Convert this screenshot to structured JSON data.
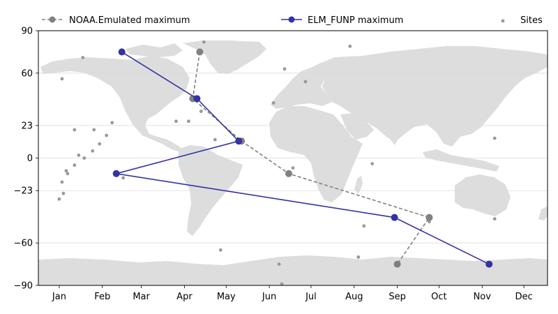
{
  "chart_data": {
    "type": "line",
    "title": "",
    "xlabel": "",
    "ylabel": "",
    "x_axis": {
      "tick_labels": [
        "Jan",
        "Feb",
        "Mar",
        "Apr",
        "May",
        "Jun",
        "Jul",
        "Aug",
        "Sep",
        "Oct",
        "Nov",
        "Dec"
      ],
      "range_days": [
        -15,
        351
      ]
    },
    "y_axis": {
      "ticks": [
        90,
        60,
        23,
        0,
        -23,
        -60,
        -90
      ],
      "tick_labels": [
        "90",
        "60",
        "23",
        "0",
        "−23",
        "−60",
        "−90"
      ],
      "range": [
        -90,
        90
      ]
    },
    "grid": "horizontal",
    "background_map": "world landmass (light gray)",
    "legend": {
      "placement": "top"
    },
    "series": [
      {
        "name": "NOAA.Emulated maximum",
        "color": "#808080",
        "linestyle": "dashed",
        "marker": "circle",
        "points": [
          {
            "date": "Apr 12",
            "lat": 75
          },
          {
            "date": "Apr 7",
            "lat": 42
          },
          {
            "date": "May 12",
            "lat": 12
          },
          {
            "date": "Jun 15",
            "lat": -11
          },
          {
            "date": "Sep 24",
            "lat": -42
          },
          {
            "date": "Sep 1",
            "lat": -75
          }
        ]
      },
      {
        "name": "ELM_FUNP maximum",
        "color": "#3333a4",
        "linestyle": "solid",
        "marker": "circle",
        "points": [
          {
            "date": "Feb 15",
            "lat": 75
          },
          {
            "date": "Apr 10",
            "lat": 42
          },
          {
            "date": "May 10",
            "lat": 12
          },
          {
            "date": "Feb 11",
            "lat": -11
          },
          {
            "date": "Aug 30",
            "lat": -42
          },
          {
            "date": "Nov 6",
            "lat": -75
          }
        ]
      },
      {
        "name": "Sites",
        "color": "#999999",
        "marker": "small-dot",
        "points": [
          {
            "date": "Apr 15",
            "lat": 82
          },
          {
            "date": "Jul 29",
            "lat": 79
          },
          {
            "date": "Jan 18",
            "lat": 71
          },
          {
            "date": "Jun 12",
            "lat": 63
          },
          {
            "date": "Jan 3",
            "lat": 56
          },
          {
            "date": "Jun 27",
            "lat": 54
          },
          {
            "date": "Dec 27",
            "lat": 53
          },
          {
            "date": "Jun 4",
            "lat": 39
          },
          {
            "date": "Apr 13",
            "lat": 33
          },
          {
            "date": "Dec 29",
            "lat": 29
          },
          {
            "date": "Apr 4",
            "lat": 26
          },
          {
            "date": "Mar 26",
            "lat": 26
          },
          {
            "date": "Feb 8",
            "lat": 25
          },
          {
            "date": "Jan 12",
            "lat": 20
          },
          {
            "date": "Jan 26",
            "lat": 20
          },
          {
            "date": "Feb 4",
            "lat": 16
          },
          {
            "date": "Jan 30",
            "lat": 10
          },
          {
            "date": "Apr 23",
            "lat": 13
          },
          {
            "date": "Nov 10",
            "lat": 14
          },
          {
            "date": "Jan 15",
            "lat": 2
          },
          {
            "date": "Jan 25",
            "lat": 5
          },
          {
            "date": "Jan 19",
            "lat": 0
          },
          {
            "date": "Jan 12",
            "lat": -5
          },
          {
            "date": "Aug 14",
            "lat": -4
          },
          {
            "date": "Jun 18",
            "lat": -7
          },
          {
            "date": "Jan 6",
            "lat": -9
          },
          {
            "date": "Jan 7",
            "lat": -11
          },
          {
            "date": "Jan 3",
            "lat": -17
          },
          {
            "date": "Dec 29",
            "lat": -19
          },
          {
            "date": "Jan 4",
            "lat": -25
          },
          {
            "date": "Jan 1",
            "lat": -29
          },
          {
            "date": "Dec 30",
            "lat": -31
          },
          {
            "date": "Feb 16",
            "lat": -14
          },
          {
            "date": "Sep 24",
            "lat": -45
          },
          {
            "date": "Nov 10",
            "lat": -43
          },
          {
            "date": "Dec 21",
            "lat": -44
          },
          {
            "date": "Dec 31",
            "lat": -37
          },
          {
            "date": "Aug 8",
            "lat": -48
          },
          {
            "date": "Apr 27",
            "lat": -65
          },
          {
            "date": "Jun 8",
            "lat": -75
          },
          {
            "date": "Aug 4",
            "lat": -70
          },
          {
            "date": "Jun 10",
            "lat": -89
          }
        ]
      }
    ]
  }
}
